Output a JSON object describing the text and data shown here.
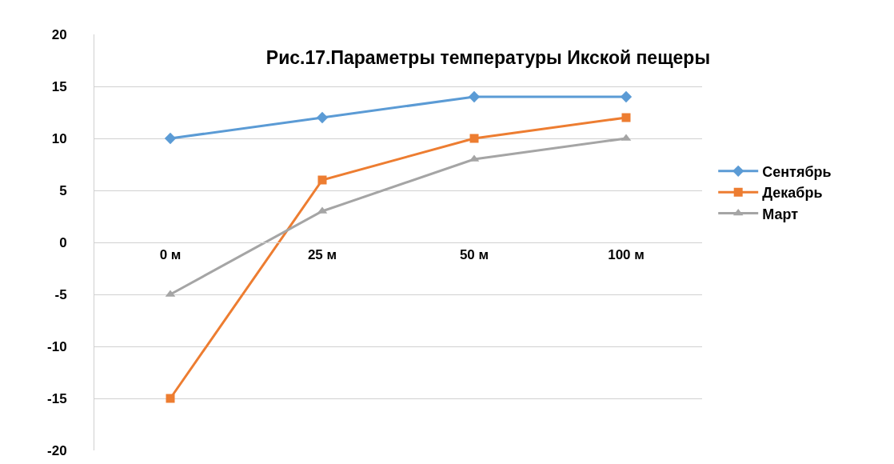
{
  "chart_data": {
    "type": "line",
    "title": "Рис.17.Параметры температуры Икской пещеры",
    "categories": [
      "0 м",
      "25 м",
      "50 м",
      "100 м"
    ],
    "series": [
      {
        "name": "Сентябрь",
        "color": "#5b9bd5",
        "marker": "diamond",
        "values": [
          10,
          12,
          14,
          14
        ]
      },
      {
        "name": "Декабрь",
        "color": "#ed7d31",
        "marker": "square",
        "values": [
          -15,
          6,
          10,
          12
        ]
      },
      {
        "name": "Март",
        "color": "#a5a5a5",
        "marker": "triangle",
        "values": [
          -5,
          3,
          8,
          10
        ]
      }
    ],
    "ylim": [
      -20,
      20
    ],
    "yticks": [
      -20,
      -15,
      -10,
      -5,
      0,
      5,
      10,
      15,
      20
    ],
    "grid": "y",
    "legend": "right",
    "line_style": "solid"
  }
}
